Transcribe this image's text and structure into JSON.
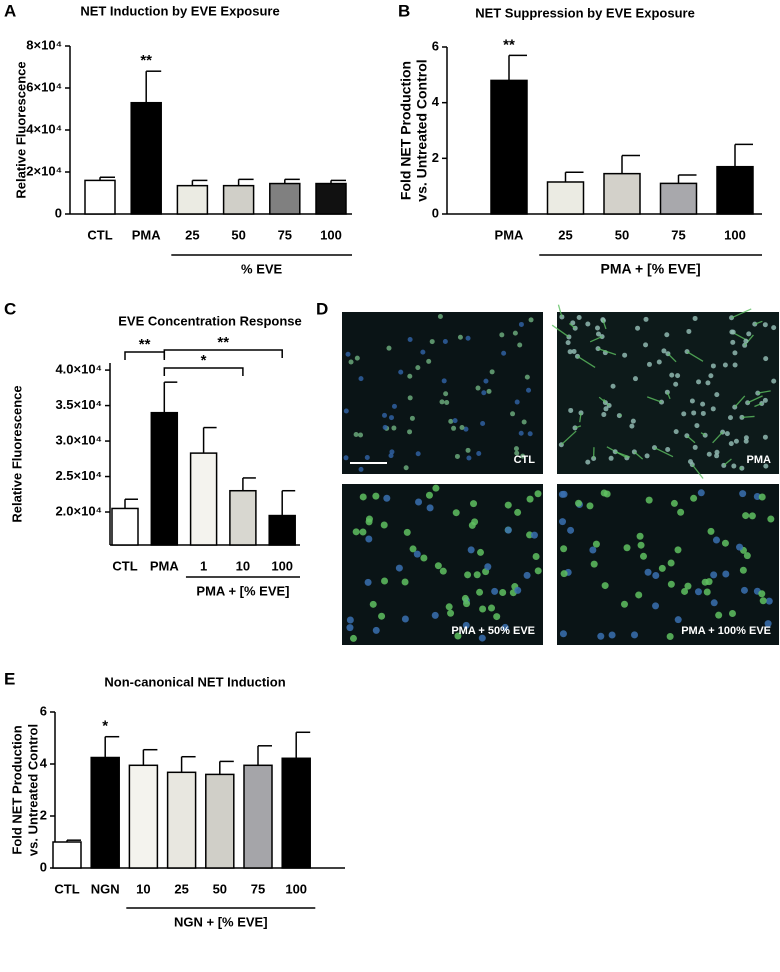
{
  "chart_data": [
    {
      "type": "bar",
      "panel": "A",
      "title": "NET Induction by EVE Exposure",
      "ylabel": [
        "Relative Fluorescence"
      ],
      "categories": [
        "CTL",
        "PMA",
        "25",
        "50",
        "75",
        "100"
      ],
      "values": [
        16000,
        53000,
        13500,
        13500,
        14500,
        14500
      ],
      "errors": [
        1500,
        15000,
        2500,
        3000,
        2000,
        1500
      ],
      "colors": [
        "#ffffff",
        "#000000",
        "#ebebe3",
        "#d0cfc8",
        "#808080",
        "#111111"
      ],
      "significance": [
        null,
        "**",
        null,
        null,
        null,
        null
      ],
      "group": {
        "label": "% EVE",
        "categories": [
          2,
          5
        ]
      },
      "ylim": [
        0,
        80000
      ],
      "yticks": [
        0,
        {
          "value": 20000,
          "label": "2×10⁴"
        },
        {
          "value": 40000,
          "label": "4×10⁴"
        },
        {
          "value": 60000,
          "label": "6×10⁴"
        },
        {
          "value": 80000,
          "label": "8×10⁴"
        }
      ]
    },
    {
      "type": "bar",
      "panel": "B",
      "title": "NET Suppression by EVE Exposure",
      "ylabel": [
        "Fold NET Production",
        "vs. Untreated Control"
      ],
      "categories": [
        "PMA",
        "25",
        "50",
        "75",
        "100"
      ],
      "values": [
        4.8,
        1.15,
        1.45,
        1.1,
        1.7
      ],
      "errors": [
        0.9,
        0.35,
        0.65,
        0.3,
        0.8
      ],
      "colors": [
        "#000000",
        "#ebebe3",
        "#d3d1ca",
        "#a8a8ac",
        "#000000"
      ],
      "significance": [
        "**",
        null,
        null,
        null,
        null
      ],
      "group": {
        "label": "PMA + [% EVE]",
        "categories": [
          1,
          4
        ]
      },
      "ylim": [
        0,
        6
      ],
      "yticks": [
        0,
        2,
        4,
        6
      ]
    },
    {
      "type": "bar",
      "panel": "C",
      "title": "EVE Concentration Response",
      "ylabel": [
        "Relative Fluorescence"
      ],
      "categories": [
        "CTL",
        "PMA",
        "1",
        "10",
        "100"
      ],
      "values": [
        20500,
        34000,
        28300,
        23000,
        19500
      ],
      "errors": [
        1300,
        4300,
        3600,
        1800,
        3500
      ],
      "colors": [
        "#ffffff",
        "#000000",
        "#f4f3ee",
        "#d8d7d0",
        "#000000"
      ],
      "brackets": [
        {
          "from": 0,
          "to": 1,
          "label": "**"
        },
        {
          "from": 1,
          "to": 3,
          "label": "*"
        },
        {
          "from": 1,
          "to": 4,
          "label": "**"
        }
      ],
      "group": {
        "label": "PMA + [% EVE]",
        "categories": [
          2,
          4
        ]
      },
      "ylim": [
        15350,
        41000
      ],
      "yticks": [
        {
          "value": 20000,
          "label": "2.0×10⁴"
        },
        {
          "value": 25000,
          "label": "2.5×10⁴"
        },
        {
          "value": 30000,
          "label": "3.0×10⁴"
        },
        {
          "value": 35000,
          "label": "3.5×10⁴"
        },
        {
          "value": 40000,
          "label": "4.0×10⁴"
        }
      ]
    },
    {
      "type": "bar",
      "panel": "E",
      "title": "Non-canonical NET Induction",
      "ylabel": [
        "Fold NET Production",
        "vs. Untreated Control"
      ],
      "categories": [
        "CTL",
        "NGN",
        "10",
        "25",
        "50",
        "75",
        "100"
      ],
      "values": [
        1.0,
        4.25,
        3.95,
        3.68,
        3.6,
        3.95,
        4.22
      ],
      "errors": [
        0.07,
        0.8,
        0.6,
        0.6,
        0.5,
        0.75,
        1.0
      ],
      "colors": [
        "#ffffff",
        "#000000",
        "#f4f3ee",
        "#e8e7e0",
        "#d0cfc8",
        "#a5a5a9",
        "#000000"
      ],
      "significance": [
        null,
        "*",
        null,
        null,
        null,
        null,
        null
      ],
      "group": {
        "label": "NGN + [% EVE]",
        "categories": [
          2,
          6
        ]
      },
      "ylim": [
        0,
        6
      ],
      "yticks": [
        0,
        2,
        4,
        6
      ]
    }
  ],
  "images": {
    "panel": "D",
    "labels": [
      "CTL",
      "PMA",
      "PMA + 50% EVE",
      "PMA + 100% EVE"
    ]
  }
}
